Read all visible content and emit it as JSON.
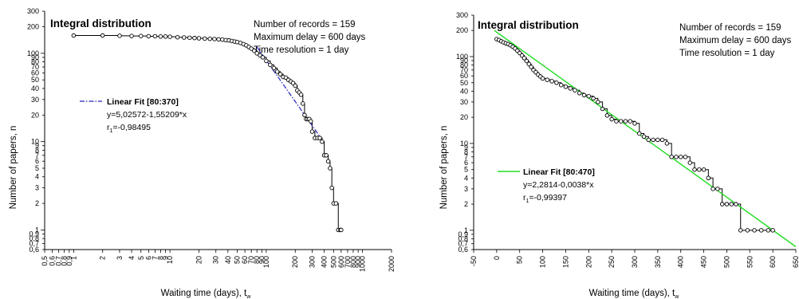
{
  "charts": [
    {
      "title": "Integral distribution",
      "info": [
        "Number of records = 159",
        "Maximum delay = 600 days",
        "Time resolution = 1 day"
      ],
      "xlabel_main": "Waiting time (days), t",
      "xlabel_sub": "w",
      "ylabel_main": "Number of papers, n",
      "fit_label": "Linear Fit [80:370]",
      "fit_eq": "y=5,02572-1,55209*x",
      "fit_r_main": "r",
      "fit_r_sub": "1",
      "fit_r_val": "=-0,98495",
      "fit_color": "#2222bb",
      "y_ticks": [
        "300",
        "200",
        "100",
        "90",
        "80",
        "70",
        "60",
        "50",
        "40",
        "30",
        "20",
        "10",
        "9",
        "8",
        "7",
        "6",
        "5",
        "4",
        "3",
        "2",
        "1",
        "0,9",
        "0,8",
        "0,7",
        "0,6"
      ],
      "x_ticks": [
        "0,5",
        "0,6",
        "0,7",
        "0,8",
        "0,9",
        "1",
        "2",
        "3",
        "4",
        "5",
        "6",
        "7",
        "8",
        "9",
        "10",
        "20",
        "30",
        "40",
        "50",
        "60",
        "70",
        "80",
        "90",
        "100",
        "200",
        "300",
        "400",
        "500",
        "600",
        "700",
        "800",
        "900",
        "1000",
        "2000"
      ]
    },
    {
      "title": "Integral distribution",
      "info": [
        "Number of records = 159",
        "Maximum delay = 600 days",
        "Time resolution = 1 day"
      ],
      "xlabel_main": "Waiting time (days), t",
      "xlabel_sub": "w",
      "ylabel_main": "Number of papers, n",
      "fit_label": "Linear Fit [80:470]",
      "fit_eq": "y=2,2814-0,0038*x",
      "fit_r_main": "r",
      "fit_r_sub": "1",
      "fit_r_val": "=-0,99397",
      "fit_color": "#22dd22",
      "y_ticks": [
        "300",
        "200",
        "100",
        "90",
        "80",
        "70",
        "60",
        "50",
        "40",
        "30",
        "20",
        "10",
        "9",
        "8",
        "7",
        "6",
        "5",
        "4",
        "3",
        "2",
        "1",
        "0,9",
        "0,8",
        "0,7",
        "0,6"
      ],
      "x_ticks": [
        "-50",
        "0",
        "50",
        "100",
        "150",
        "200",
        "250",
        "300",
        "350",
        "400",
        "450",
        "500",
        "550",
        "600",
        "650"
      ]
    }
  ],
  "chart_data": [
    {
      "type": "scatter",
      "title": "Integral distribution",
      "xlabel": "Waiting time (days), t_w",
      "ylabel": "Number of papers, n",
      "x_scale": "log",
      "y_scale": "log",
      "xlim": [
        0.5,
        2000
      ],
      "ylim": [
        0.6,
        300
      ],
      "grid": false,
      "points": [
        [
          1,
          159
        ],
        [
          2,
          159
        ],
        [
          3,
          158
        ],
        [
          4,
          157
        ],
        [
          5,
          157
        ],
        [
          6,
          156
        ],
        [
          7,
          156
        ],
        [
          8,
          155
        ],
        [
          9,
          155
        ],
        [
          10,
          154
        ],
        [
          12,
          152
        ],
        [
          14,
          151
        ],
        [
          16,
          150
        ],
        [
          18,
          149
        ],
        [
          20,
          148
        ],
        [
          23,
          147
        ],
        [
          26,
          146
        ],
        [
          29,
          145
        ],
        [
          32,
          144
        ],
        [
          35,
          143
        ],
        [
          38,
          141
        ],
        [
          41,
          140
        ],
        [
          44,
          138
        ],
        [
          47,
          136
        ],
        [
          50,
          134
        ],
        [
          54,
          131
        ],
        [
          58,
          127
        ],
        [
          62,
          123
        ],
        [
          66,
          118
        ],
        [
          70,
          113
        ],
        [
          75,
          107
        ],
        [
          80,
          100
        ],
        [
          86,
          95
        ],
        [
          92,
          90
        ],
        [
          100,
          82
        ],
        [
          110,
          74
        ],
        [
          120,
          68
        ],
        [
          130,
          62
        ],
        [
          140,
          58
        ],
        [
          150,
          54
        ],
        [
          160,
          53
        ],
        [
          170,
          50
        ],
        [
          180,
          48
        ],
        [
          190,
          46
        ],
        [
          200,
          43
        ],
        [
          210,
          38
        ],
        [
          220,
          36
        ],
        [
          230,
          34
        ],
        [
          240,
          27
        ],
        [
          250,
          20
        ],
        [
          260,
          18
        ],
        [
          270,
          18
        ],
        [
          280,
          18
        ],
        [
          290,
          17
        ],
        [
          300,
          13
        ],
        [
          320,
          11
        ],
        [
          340,
          11
        ],
        [
          360,
          11
        ],
        [
          380,
          10
        ],
        [
          400,
          7
        ],
        [
          420,
          7
        ],
        [
          440,
          6
        ],
        [
          460,
          5
        ],
        [
          480,
          3
        ],
        [
          500,
          2
        ],
        [
          530,
          2
        ],
        [
          560,
          1
        ],
        [
          590,
          1
        ],
        [
          600,
          1
        ]
      ],
      "fit": {
        "label": "Linear Fit [80:370]",
        "equation": "y=5,02572-1,55209*x",
        "r": "r1=-0,98495",
        "x_range": [
          80,
          370
        ]
      }
    },
    {
      "type": "scatter",
      "title": "Integral distribution",
      "xlabel": "Waiting time (days), t_w",
      "ylabel": "Number of papers, n",
      "x_scale": "linear",
      "y_scale": "log",
      "xlim": [
        -50,
        650
      ],
      "ylim": [
        0.6,
        300
      ],
      "grid": false,
      "points": [
        [
          0,
          159
        ],
        [
          5,
          155
        ],
        [
          10,
          150
        ],
        [
          15,
          146
        ],
        [
          20,
          142
        ],
        [
          25,
          139
        ],
        [
          30,
          135
        ],
        [
          35,
          130
        ],
        [
          40,
          124
        ],
        [
          45,
          117
        ],
        [
          50,
          110
        ],
        [
          55,
          103
        ],
        [
          60,
          96
        ],
        [
          65,
          89
        ],
        [
          70,
          82
        ],
        [
          75,
          76
        ],
        [
          80,
          70
        ],
        [
          85,
          66
        ],
        [
          90,
          62
        ],
        [
          95,
          59
        ],
        [
          100,
          56
        ],
        [
          110,
          54
        ],
        [
          120,
          52
        ],
        [
          130,
          50
        ],
        [
          140,
          47
        ],
        [
          150,
          45
        ],
        [
          160,
          43
        ],
        [
          170,
          41
        ],
        [
          180,
          38
        ],
        [
          190,
          36
        ],
        [
          200,
          35
        ],
        [
          210,
          33
        ],
        [
          220,
          30
        ],
        [
          230,
          25
        ],
        [
          240,
          21
        ],
        [
          250,
          19
        ],
        [
          260,
          18
        ],
        [
          270,
          18
        ],
        [
          280,
          18
        ],
        [
          290,
          18
        ],
        [
          300,
          17
        ],
        [
          310,
          13
        ],
        [
          320,
          12
        ],
        [
          330,
          11
        ],
        [
          340,
          11
        ],
        [
          350,
          11
        ],
        [
          360,
          11
        ],
        [
          370,
          10
        ],
        [
          380,
          7
        ],
        [
          390,
          7
        ],
        [
          400,
          7
        ],
        [
          410,
          7
        ],
        [
          420,
          6
        ],
        [
          430,
          5
        ],
        [
          440,
          5
        ],
        [
          450,
          5
        ],
        [
          460,
          4
        ],
        [
          470,
          3
        ],
        [
          480,
          3
        ],
        [
          490,
          2
        ],
        [
          500,
          2
        ],
        [
          510,
          2
        ],
        [
          520,
          2
        ],
        [
          530,
          1
        ],
        [
          545,
          1
        ],
        [
          560,
          1
        ],
        [
          575,
          1
        ],
        [
          590,
          1
        ],
        [
          600,
          1
        ]
      ],
      "fit": {
        "label": "Linear Fit [80:470]",
        "equation": "y=2,2814-0,0038*x",
        "r": "r1=-0,99397",
        "x_range": [
          -5,
          650
        ]
      }
    }
  ]
}
